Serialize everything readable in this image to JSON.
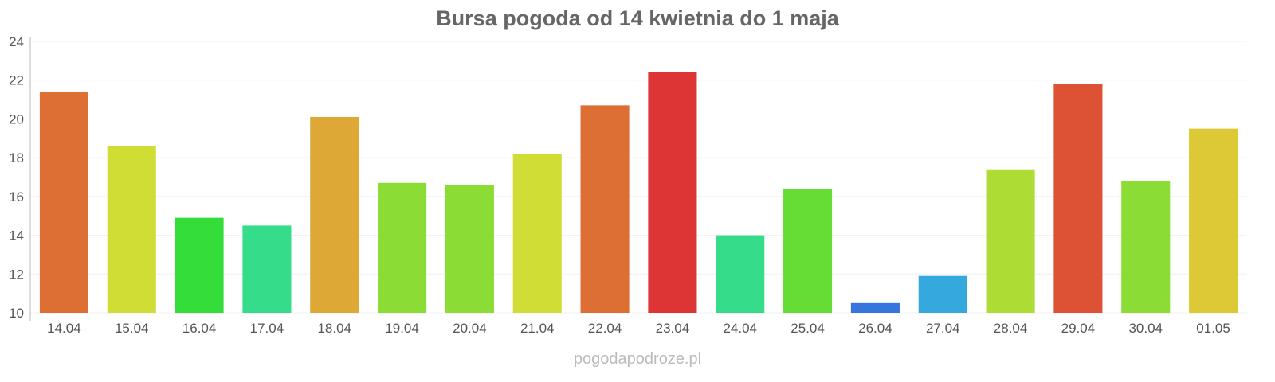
{
  "chart_data": {
    "type": "bar",
    "title": "Bursa pogoda od 14 kwietnia do 1 maja",
    "xlabel": "",
    "ylabel": "",
    "ylim": [
      10,
      24
    ],
    "yticks": [
      10,
      12,
      14,
      16,
      18,
      20,
      22,
      24
    ],
    "grid": true,
    "categories": [
      "14.04",
      "15.04",
      "16.04",
      "17.04",
      "18.04",
      "19.04",
      "20.04",
      "21.04",
      "22.04",
      "23.04",
      "24.04",
      "25.04",
      "26.04",
      "27.04",
      "28.04",
      "29.04",
      "30.04",
      "01.05"
    ],
    "values": [
      21.4,
      18.6,
      14.9,
      14.5,
      20.1,
      16.7,
      16.6,
      18.2,
      20.7,
      22.4,
      14.0,
      16.4,
      10.5,
      11.9,
      17.4,
      21.8,
      16.8,
      19.5
    ],
    "colors": [
      "#dd6f35",
      "#cfdd35",
      "#35dd3a",
      "#35dd8b",
      "#dda835",
      "#8bdd35",
      "#8bdd35",
      "#cfdd35",
      "#dd6f35",
      "#dd3535",
      "#35dd8b",
      "#66dd35",
      "#3575dd",
      "#35a8dd",
      "#addd35",
      "#dd5135",
      "#8bdd35",
      "#ddc935"
    ]
  },
  "footer": "pogodapodroze.pl"
}
